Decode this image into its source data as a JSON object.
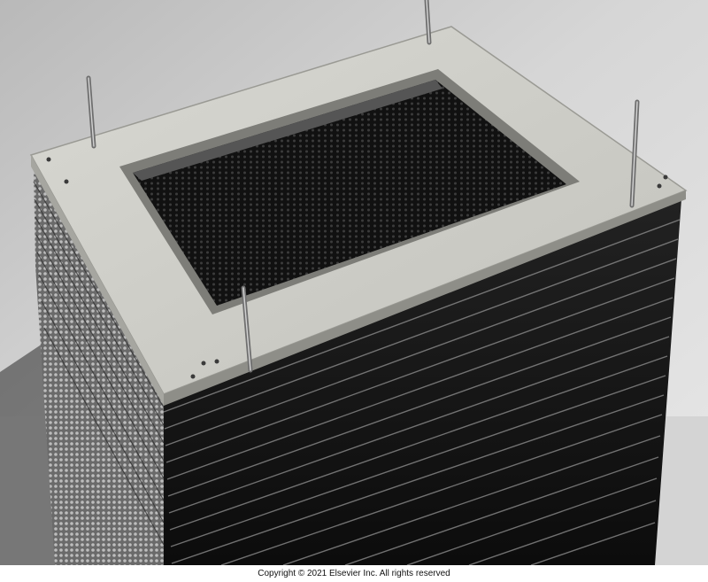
{
  "photo": {
    "subject": "stacked-plate-heat-exchanger-core"
  },
  "caption": {
    "copyright": "Copyright © 2021 Elsevier Inc. All rights reserved"
  }
}
